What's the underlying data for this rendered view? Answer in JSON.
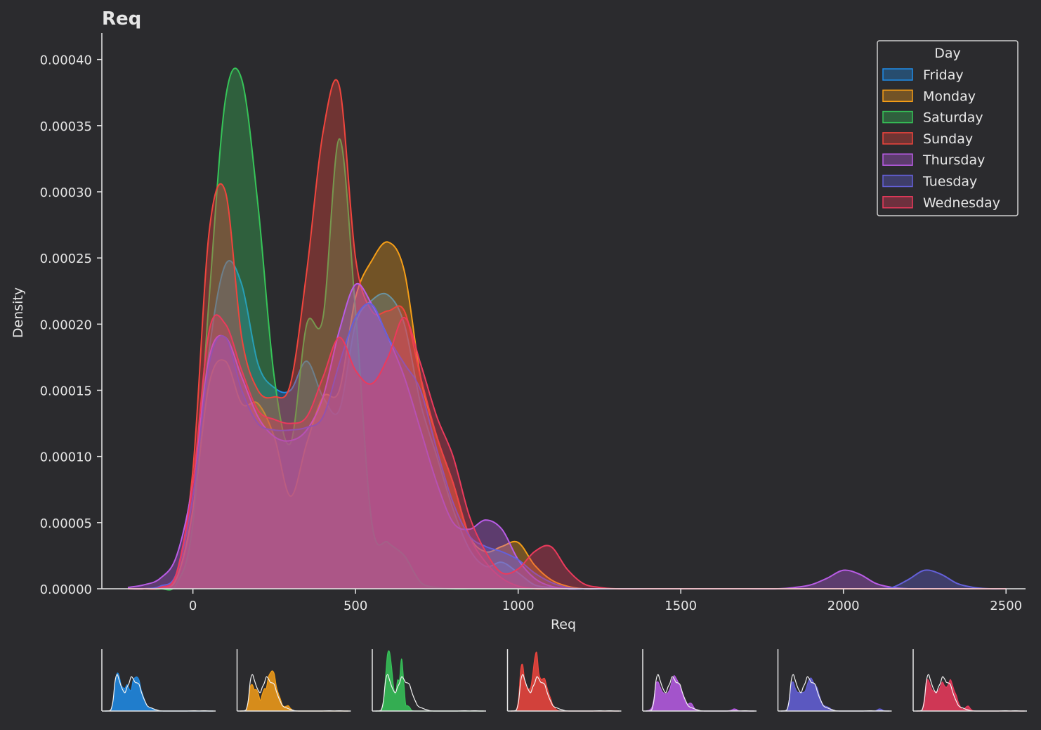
{
  "chart_data": {
    "type": "area",
    "title": "Req",
    "xlabel": "Req",
    "ylabel": "Density",
    "xlim": [
      -280,
      2560
    ],
    "ylim": [
      0,
      0.00042
    ],
    "xticks": [
      0,
      500,
      1000,
      1500,
      2000,
      2500
    ],
    "xtick_labels": [
      "0",
      "500",
      "1000",
      "1500",
      "2000",
      "2500"
    ],
    "yticks": [
      0,
      5e-05,
      0.0001,
      0.00015,
      0.0002,
      0.00025,
      0.0003,
      0.00035,
      0.0004
    ],
    "ytick_labels": [
      "0.00000",
      "0.00005",
      "0.00010",
      "0.00015",
      "0.00020",
      "0.00025",
      "0.00030",
      "0.00035",
      "0.00040"
    ],
    "grid": false,
    "legend": {
      "title": "Day",
      "placement": "top-right"
    },
    "x": [
      -200,
      -150,
      -100,
      -50,
      0,
      50,
      100,
      150,
      200,
      250,
      300,
      350,
      400,
      450,
      500,
      550,
      600,
      650,
      700,
      750,
      800,
      850,
      900,
      950,
      1000,
      1050,
      1100,
      1150,
      1200,
      1250,
      1300,
      1400,
      1500,
      1600,
      1700,
      1800,
      1850,
      1900,
      1950,
      2000,
      2050,
      2100,
      2150,
      2200,
      2250,
      2300,
      2350,
      2400,
      2450,
      2500
    ],
    "series": [
      {
        "name": "Friday",
        "color": "#1f8ce8",
        "values": [
          0,
          0,
          1e-06,
          8e-06,
          6e-05,
          0.00018,
          0.000245,
          0.00023,
          0.00017,
          0.000152,
          0.00015,
          0.000172,
          0.000145,
          0.000135,
          0.0002,
          0.000218,
          0.000222,
          0.0002,
          0.00014,
          0.0001,
          6e-05,
          3e-05,
          1.7e-05,
          2e-05,
          1.2e-05,
          3e-06,
          1e-06,
          0,
          0,
          0,
          0,
          0,
          0,
          0,
          0,
          0,
          0,
          0,
          0,
          0,
          0,
          0,
          0,
          0,
          0,
          0,
          0,
          0,
          0,
          0
        ]
      },
      {
        "name": "Monday",
        "color": "#f59e17",
        "values": [
          0,
          0,
          1e-06,
          8e-06,
          6e-05,
          0.000155,
          0.000172,
          0.00014,
          0.00014,
          0.000115,
          7e-05,
          0.00011,
          0.000145,
          0.00015,
          0.00022,
          0.000248,
          0.000262,
          0.00024,
          0.00016,
          0.000115,
          8e-05,
          4e-05,
          2.8e-05,
          3.2e-05,
          3.5e-05,
          1.8e-05,
          7e-06,
          2e-06,
          0,
          0,
          0,
          0,
          0,
          0,
          0,
          0,
          0,
          0,
          0,
          0,
          0,
          0,
          0,
          0,
          0,
          0,
          0,
          0,
          0,
          0
        ]
      },
      {
        "name": "Saturday",
        "color": "#36c458",
        "values": [
          0,
          0,
          0,
          4e-06,
          5e-05,
          0.00022,
          0.00037,
          0.000385,
          0.00029,
          0.00016,
          0.00011,
          0.0002,
          0.000205,
          0.00034,
          0.00021,
          5e-05,
          3.5e-05,
          2.5e-05,
          5e-06,
          1e-06,
          0,
          0,
          0,
          0,
          0,
          0,
          0,
          0,
          0,
          0,
          0,
          0,
          0,
          0,
          0,
          0,
          0,
          0,
          0,
          0,
          0,
          0,
          0,
          0,
          0,
          0,
          0,
          0,
          0,
          0
        ]
      },
      {
        "name": "Sunday",
        "color": "#f0453d",
        "values": [
          0,
          0,
          1e-06,
          1.2e-05,
          9e-05,
          0.00027,
          0.0003,
          0.00019,
          0.00015,
          0.000145,
          0.000155,
          0.00024,
          0.000345,
          0.00038,
          0.00025,
          0.00021,
          0.00021,
          0.00021,
          0.00016,
          0.000115,
          8e-05,
          4e-05,
          2e-05,
          8e-06,
          2e-06,
          0,
          0,
          0,
          0,
          0,
          0,
          0,
          0,
          0,
          0,
          0,
          0,
          0,
          0,
          0,
          0,
          0,
          0,
          0,
          0,
          0,
          0,
          0,
          0,
          0
        ]
      },
      {
        "name": "Thursday",
        "color": "#b95ce6",
        "values": [
          1e-06,
          3e-06,
          8e-06,
          2.5e-05,
          8e-05,
          0.000175,
          0.00019,
          0.00016,
          0.00013,
          0.000115,
          0.000112,
          0.00012,
          0.000145,
          0.000195,
          0.00023,
          0.000215,
          0.00019,
          0.00016,
          0.00012,
          8e-05,
          5e-05,
          4.5e-05,
          5.2e-05,
          4.5e-05,
          2.2e-05,
          8e-06,
          2e-06,
          0,
          0,
          0,
          0,
          0,
          0,
          0,
          0,
          0,
          1e-06,
          3e-06,
          8e-06,
          1.4e-05,
          1.1e-05,
          4e-06,
          1e-06,
          0,
          0,
          0,
          0,
          0,
          0,
          0
        ]
      },
      {
        "name": "Tuesday",
        "color": "#6460d9",
        "values": [
          0,
          0,
          2e-06,
          1.2e-05,
          7e-05,
          0.00017,
          0.00019,
          0.00015,
          0.000125,
          0.00012,
          0.00012,
          0.000122,
          0.00013,
          0.00017,
          0.000205,
          0.000215,
          0.00019,
          0.00017,
          0.00015,
          0.000105,
          6.5e-05,
          4e-05,
          3.2e-05,
          2.8e-05,
          2.2e-05,
          1.2e-05,
          5e-06,
          1e-06,
          0,
          0,
          0,
          0,
          0,
          0,
          0,
          0,
          0,
          0,
          0,
          0,
          0,
          0,
          1e-06,
          7e-06,
          1.4e-05,
          1.1e-05,
          4e-06,
          1e-06,
          0,
          0
        ]
      },
      {
        "name": "Wednesday",
        "color": "#ec3a5c",
        "values": [
          0,
          0,
          1e-06,
          1.2e-05,
          8e-05,
          0.000195,
          0.0002,
          0.000165,
          0.000135,
          0.000128,
          0.000125,
          0.00013,
          0.00016,
          0.00019,
          0.000165,
          0.000155,
          0.000175,
          0.000205,
          0.00017,
          0.00013,
          0.0001,
          5.5e-05,
          2.8e-05,
          1.2e-05,
          1.5e-05,
          2.8e-05,
          3.2e-05,
          1.5e-05,
          4e-06,
          1e-06,
          0,
          0,
          0,
          0,
          0,
          0,
          0,
          0,
          0,
          0,
          0,
          0,
          0,
          0,
          0,
          0,
          0,
          0,
          0,
          0
        ]
      }
    ]
  }
}
